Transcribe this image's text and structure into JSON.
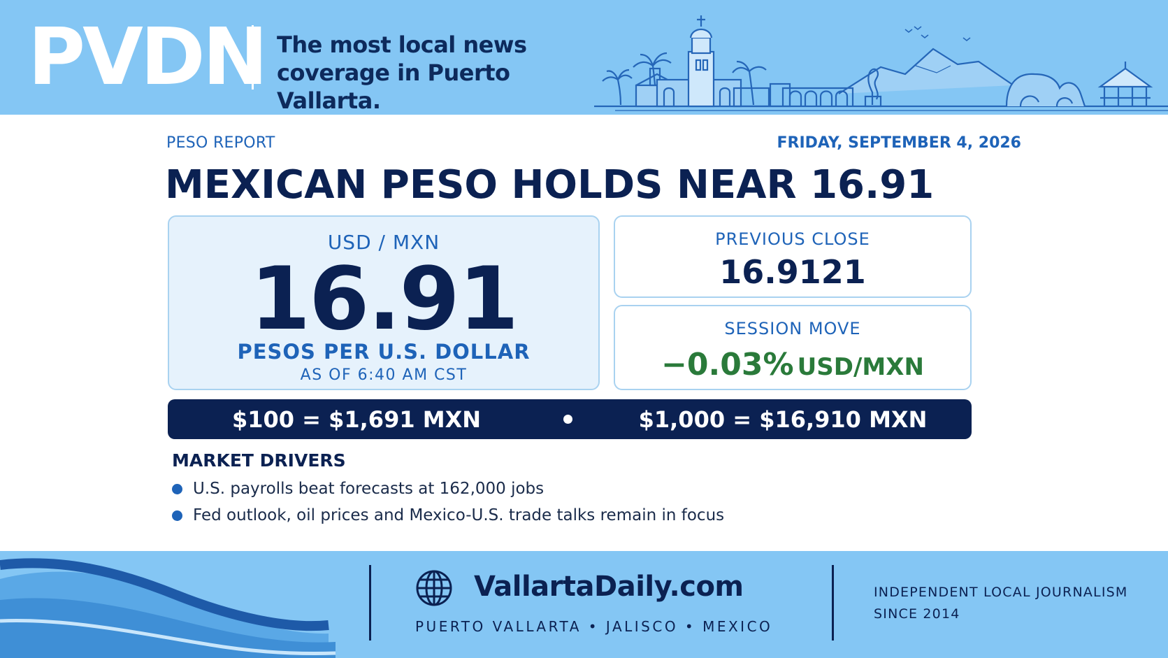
{
  "header": {
    "logo": "PVDN",
    "tagline_line1": "The most local news",
    "tagline_line2": "coverage in Puerto Vallarta."
  },
  "article": {
    "kicker": "PESO REPORT",
    "date": "FRIDAY, SEPTEMBER 4, 2026",
    "headline": "MEXICAN PESO HOLDS NEAR 16.91"
  },
  "rate_card": {
    "pair": "USD / MXN",
    "rate": "16.91",
    "unit": "PESOS PER U.S. DOLLAR",
    "as_of": "AS OF 6:40 AM CST"
  },
  "previous_close": {
    "label": "PREVIOUS CLOSE",
    "value": "16.9121"
  },
  "session_move": {
    "label": "SESSION MOVE",
    "value": "−0.03%",
    "unit": "USD/MXN"
  },
  "conversions": {
    "left": "$100 = $1,691 MXN",
    "right": "$1,000 = $16,910 MXN"
  },
  "drivers": {
    "title": "MARKET DRIVERS",
    "items": [
      "U.S. payrolls beat forecasts at 162,000 jobs",
      "Fed outlook, oil prices and Mexico-U.S. trade talks remain in focus"
    ]
  },
  "footer": {
    "site": "VallartaDaily.com",
    "location": "PUERTO VALLARTA  •  JALISCO  •  MEXICO",
    "journalism_line1": "INDEPENDENT LOCAL JOURNALISM",
    "journalism_line2": "SINCE 2014"
  },
  "colors": {
    "sky_blue": "#84c6f4",
    "navy": "#0b2152",
    "accent_blue": "#1e63b8",
    "move_green": "#2a7a3a"
  },
  "icons": [
    "skyline-illustration",
    "globe-icon",
    "wave-decoration"
  ]
}
